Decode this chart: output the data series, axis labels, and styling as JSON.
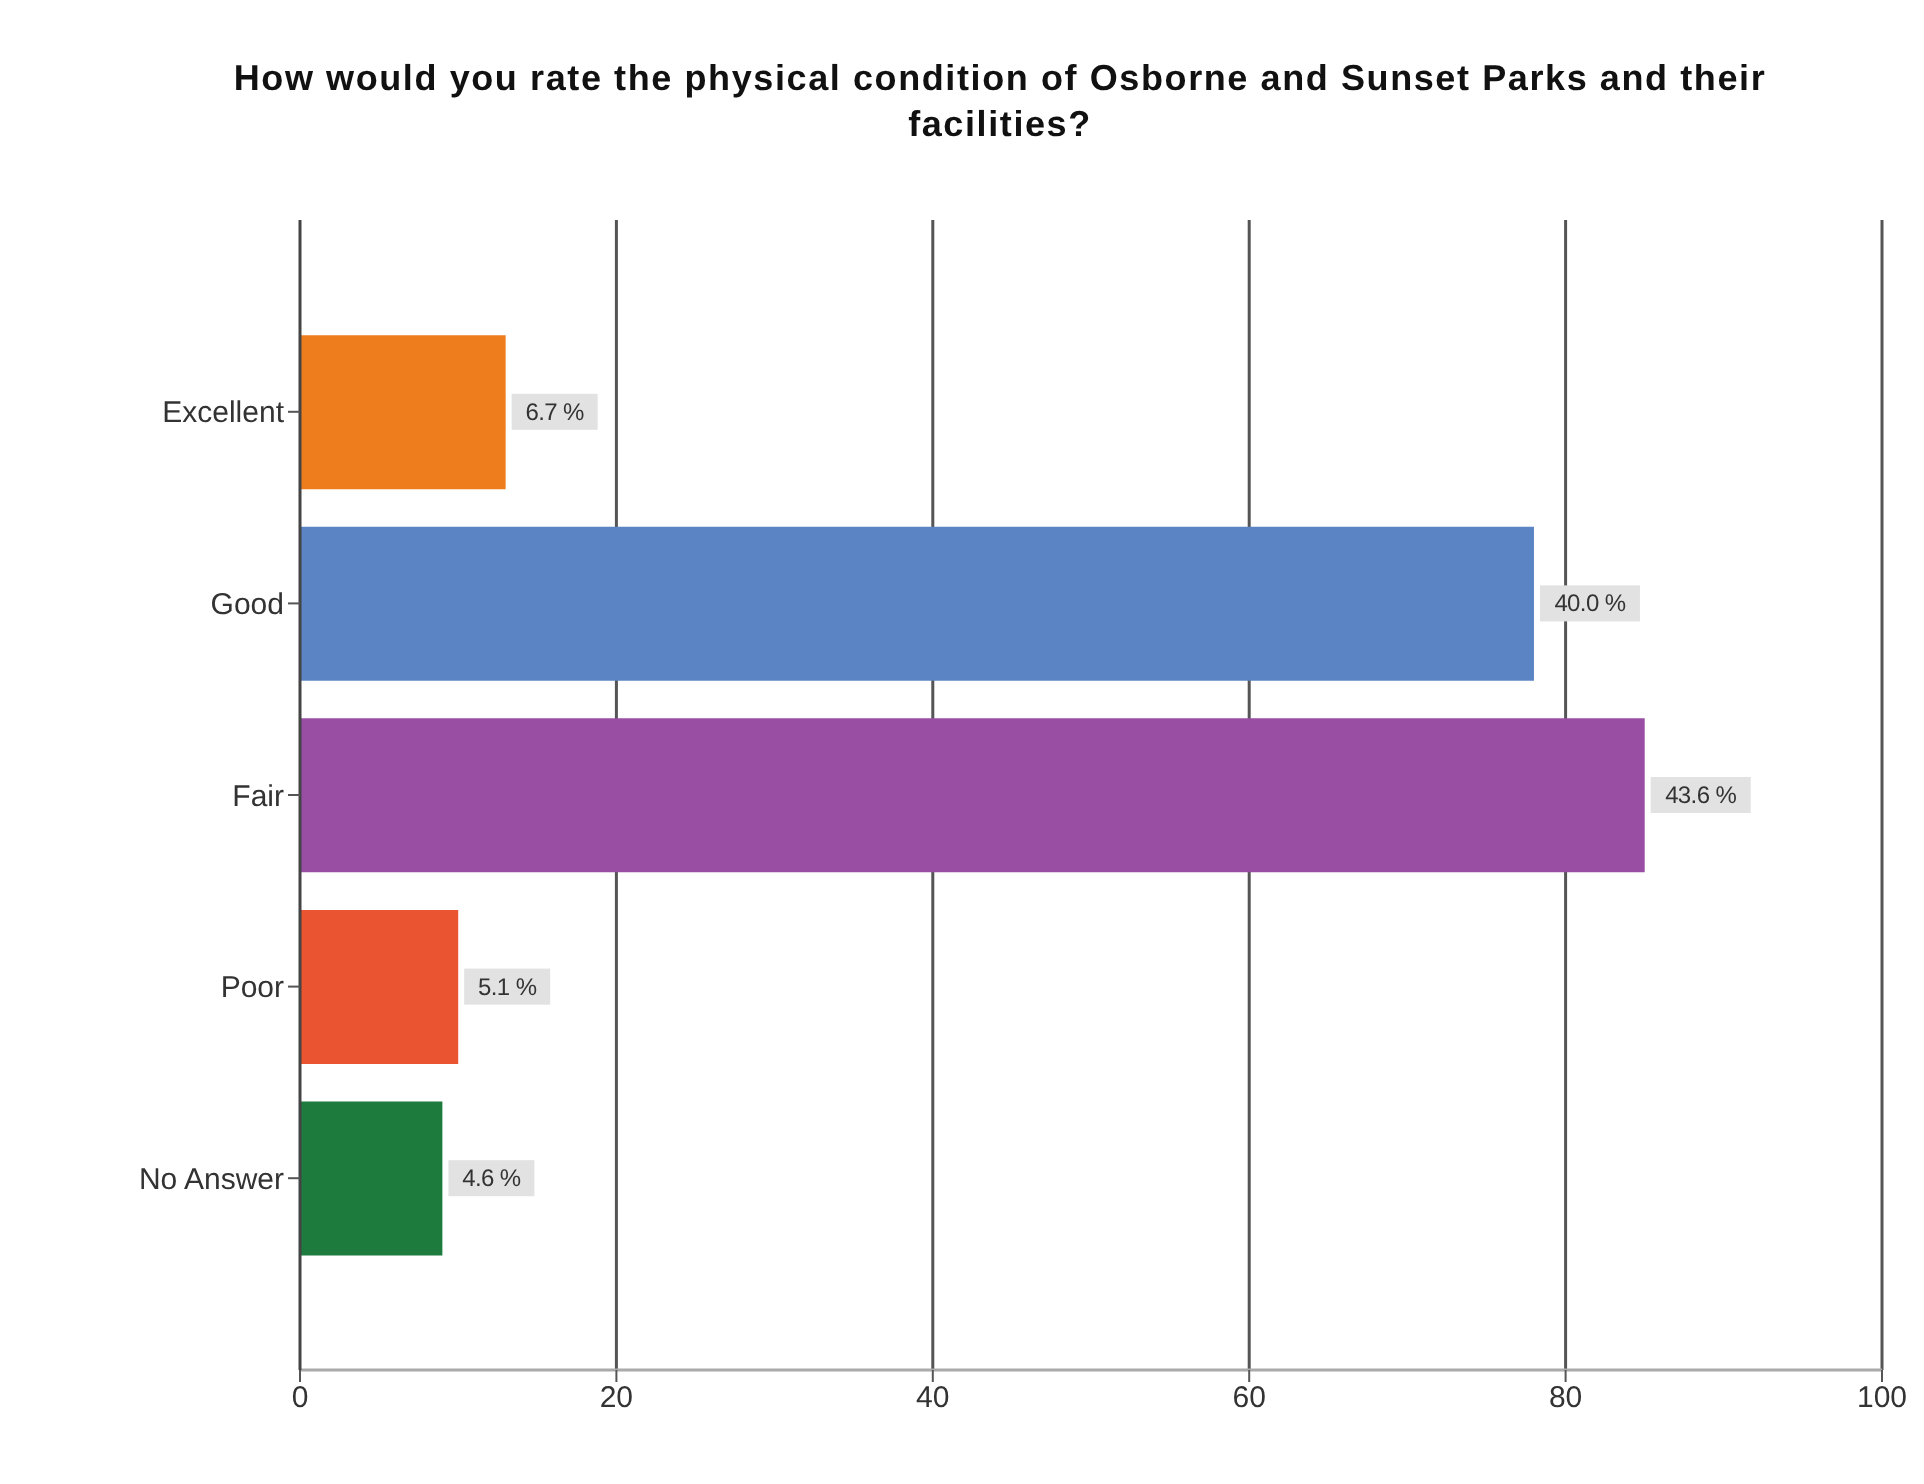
{
  "chart_data": {
    "type": "bar",
    "orientation": "horizontal",
    "title": "How would you rate the physical condition of Osborne and Sunset Parks and their facilities?",
    "categories": [
      "Excellent",
      "Good",
      "Fair",
      "Poor",
      "No Answer"
    ],
    "values": [
      13,
      78,
      85,
      10,
      9
    ],
    "colors": [
      "#ee7d1e",
      "#5b84c4",
      "#994ea4",
      "#ea5430",
      "#1e7b3e"
    ],
    "annotations": [
      {
        "text": "6.7 %",
        "x": 13,
        "y": "Excellent"
      },
      {
        "text": "40.0 %",
        "x": 78,
        "y": "Good"
      },
      {
        "text": "43.6 %",
        "x": 85,
        "y": "Fair"
      },
      {
        "text": "5.1 %",
        "x": 10,
        "y": "Poor"
      },
      {
        "text": "4.6 %",
        "x": 9,
        "y": "No Answer"
      }
    ],
    "xlim": [
      0,
      100
    ],
    "xticks": [
      0,
      20,
      40,
      60,
      80,
      100
    ],
    "grid": "x"
  }
}
